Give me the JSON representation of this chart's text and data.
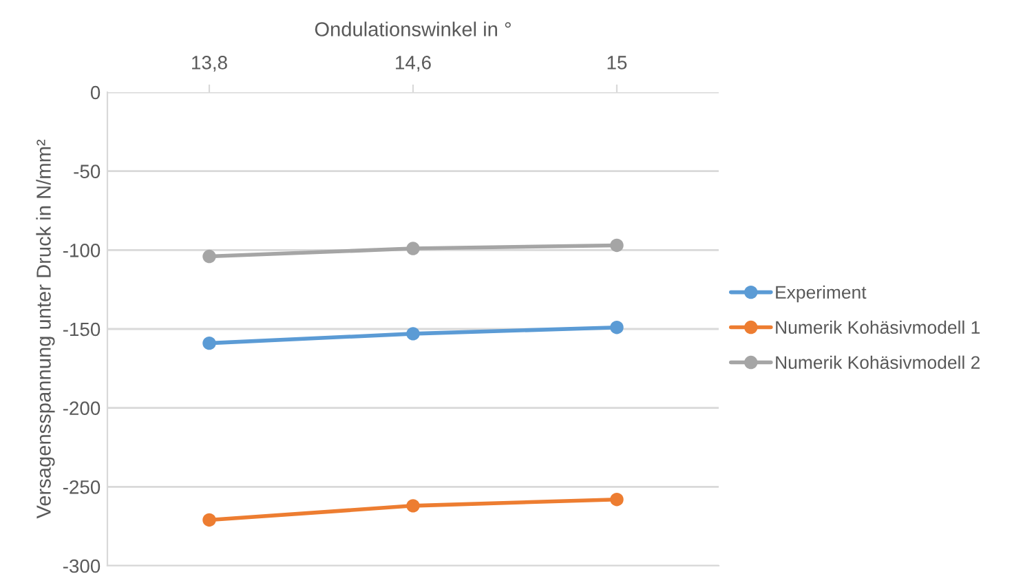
{
  "chart_data": {
    "type": "line",
    "xlabel": "Ondulationswinkel in °",
    "ylabel": "Versagensspannung unter Druck in N/mm²",
    "categories": [
      "13,8",
      "14,6",
      "15"
    ],
    "series": [
      {
        "name": "Experiment",
        "color": "#5b9bd5",
        "values": [
          -159,
          -153,
          -149
        ]
      },
      {
        "name": "Numerik Kohäsivmodell 1",
        "color": "#ed7d31",
        "values": [
          -271,
          -262,
          -258
        ]
      },
      {
        "name": "Numerik Kohäsivmodell 2",
        "color": "#a5a5a5",
        "values": [
          -104,
          -99,
          -97
        ]
      }
    ],
    "ylim": [
      -300,
      0
    ],
    "yticks": [
      -300,
      -250,
      -200,
      -150,
      -100,
      -50,
      0
    ],
    "grid": "y",
    "legend": "right",
    "marker": "circle",
    "line_style": "solid"
  }
}
